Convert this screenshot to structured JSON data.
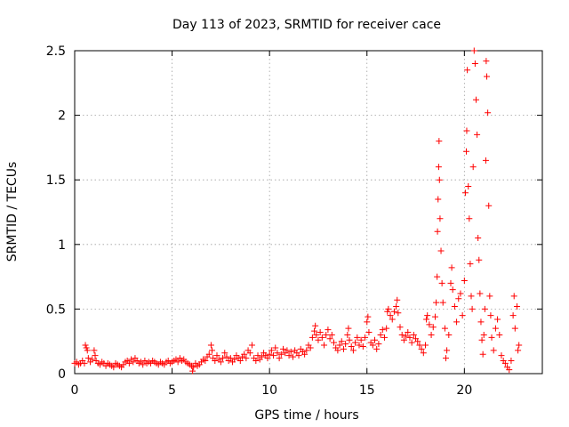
{
  "chart_data": {
    "type": "scatter",
    "title": "Day 113 of 2023, SRMTID for receiver cace",
    "xlabel": "GPS time / hours",
    "ylabel": "SRMTID / TECUs",
    "xlim": [
      0,
      24
    ],
    "ylim": [
      0,
      2.5
    ],
    "xticks": [
      0,
      5,
      10,
      15,
      20
    ],
    "yticks": [
      0,
      0.5,
      1,
      1.5,
      2,
      2.5
    ],
    "xtick_labels": [
      "0",
      "5",
      "10",
      "15",
      "20"
    ],
    "ytick_labels": [
      "0",
      "0.5",
      "1",
      "1.5",
      "2",
      "2.5"
    ],
    "grid": true,
    "marker": "+",
    "color": "#ff0000",
    "series": [
      {
        "name": "SRMTID",
        "points": [
          [
            0.0,
            0.08
          ],
          [
            0.1,
            0.09
          ],
          [
            0.2,
            0.07
          ],
          [
            0.3,
            0.08
          ],
          [
            0.4,
            0.1
          ],
          [
            0.5,
            0.08
          ],
          [
            0.55,
            0.22
          ],
          [
            0.6,
            0.2
          ],
          [
            0.65,
            0.18
          ],
          [
            0.7,
            0.12
          ],
          [
            0.8,
            0.09
          ],
          [
            0.9,
            0.11
          ],
          [
            1.0,
            0.18
          ],
          [
            1.05,
            0.14
          ],
          [
            1.1,
            0.1
          ],
          [
            1.2,
            0.08
          ],
          [
            1.3,
            0.07
          ],
          [
            1.4,
            0.09
          ],
          [
            1.5,
            0.08
          ],
          [
            1.6,
            0.06
          ],
          [
            1.7,
            0.08
          ],
          [
            1.8,
            0.07
          ],
          [
            1.9,
            0.06
          ],
          [
            2.0,
            0.05
          ],
          [
            2.1,
            0.08
          ],
          [
            2.2,
            0.07
          ],
          [
            2.3,
            0.06
          ],
          [
            2.4,
            0.05
          ],
          [
            2.5,
            0.07
          ],
          [
            2.6,
            0.09
          ],
          [
            2.7,
            0.1
          ],
          [
            2.8,
            0.08
          ],
          [
            2.9,
            0.11
          ],
          [
            3.0,
            0.09
          ],
          [
            3.1,
            0.12
          ],
          [
            3.2,
            0.1
          ],
          [
            3.3,
            0.08
          ],
          [
            3.4,
            0.09
          ],
          [
            3.5,
            0.07
          ],
          [
            3.6,
            0.1
          ],
          [
            3.7,
            0.08
          ],
          [
            3.8,
            0.09
          ],
          [
            3.9,
            0.08
          ],
          [
            4.0,
            0.1
          ],
          [
            4.1,
            0.09
          ],
          [
            4.2,
            0.08
          ],
          [
            4.3,
            0.07
          ],
          [
            4.4,
            0.09
          ],
          [
            4.5,
            0.08
          ],
          [
            4.6,
            0.07
          ],
          [
            4.7,
            0.09
          ],
          [
            4.8,
            0.1
          ],
          [
            4.9,
            0.08
          ],
          [
            5.0,
            0.09
          ],
          [
            5.1,
            0.1
          ],
          [
            5.2,
            0.11
          ],
          [
            5.3,
            0.09
          ],
          [
            5.4,
            0.12
          ],
          [
            5.5,
            0.1
          ],
          [
            5.6,
            0.11
          ],
          [
            5.7,
            0.09
          ],
          [
            5.8,
            0.08
          ],
          [
            5.9,
            0.07
          ],
          [
            6.0,
            0.06
          ],
          [
            6.05,
            0.02
          ],
          [
            6.1,
            0.05
          ],
          [
            6.2,
            0.08
          ],
          [
            6.3,
            0.06
          ],
          [
            6.4,
            0.07
          ],
          [
            6.5,
            0.09
          ],
          [
            6.6,
            0.11
          ],
          [
            6.7,
            0.1
          ],
          [
            6.8,
            0.13
          ],
          [
            6.9,
            0.15
          ],
          [
            7.0,
            0.22
          ],
          [
            7.05,
            0.18
          ],
          [
            7.1,
            0.12
          ],
          [
            7.2,
            0.1
          ],
          [
            7.3,
            0.14
          ],
          [
            7.4,
            0.11
          ],
          [
            7.5,
            0.09
          ],
          [
            7.6,
            0.12
          ],
          [
            7.7,
            0.16
          ],
          [
            7.8,
            0.13
          ],
          [
            7.9,
            0.1
          ],
          [
            8.0,
            0.12
          ],
          [
            8.1,
            0.09
          ],
          [
            8.2,
            0.11
          ],
          [
            8.3,
            0.14
          ],
          [
            8.4,
            0.12
          ],
          [
            8.5,
            0.1
          ],
          [
            8.6,
            0.13
          ],
          [
            8.7,
            0.15
          ],
          [
            8.8,
            0.12
          ],
          [
            8.9,
            0.18
          ],
          [
            9.0,
            0.16
          ],
          [
            9.1,
            0.22
          ],
          [
            9.2,
            0.12
          ],
          [
            9.3,
            0.1
          ],
          [
            9.4,
            0.14
          ],
          [
            9.5,
            0.11
          ],
          [
            9.6,
            0.13
          ],
          [
            9.7,
            0.16
          ],
          [
            9.8,
            0.14
          ],
          [
            9.9,
            0.12
          ],
          [
            10.0,
            0.15
          ],
          [
            10.1,
            0.18
          ],
          [
            10.2,
            0.14
          ],
          [
            10.3,
            0.2
          ],
          [
            10.4,
            0.16
          ],
          [
            10.5,
            0.12
          ],
          [
            10.6,
            0.15
          ],
          [
            10.7,
            0.19
          ],
          [
            10.8,
            0.16
          ],
          [
            10.9,
            0.18
          ],
          [
            11.0,
            0.14
          ],
          [
            11.1,
            0.17
          ],
          [
            11.2,
            0.13
          ],
          [
            11.3,
            0.18
          ],
          [
            11.4,
            0.16
          ],
          [
            11.5,
            0.14
          ],
          [
            11.6,
            0.19
          ],
          [
            11.7,
            0.17
          ],
          [
            11.8,
            0.15
          ],
          [
            11.9,
            0.18
          ],
          [
            12.0,
            0.22
          ],
          [
            12.1,
            0.2
          ],
          [
            12.2,
            0.28
          ],
          [
            12.3,
            0.33
          ],
          [
            12.35,
            0.37
          ],
          [
            12.4,
            0.3
          ],
          [
            12.5,
            0.26
          ],
          [
            12.6,
            0.32
          ],
          [
            12.7,
            0.28
          ],
          [
            12.8,
            0.22
          ],
          [
            12.9,
            0.3
          ],
          [
            13.0,
            0.34
          ],
          [
            13.1,
            0.27
          ],
          [
            13.2,
            0.3
          ],
          [
            13.3,
            0.24
          ],
          [
            13.4,
            0.2
          ],
          [
            13.5,
            0.18
          ],
          [
            13.6,
            0.22
          ],
          [
            13.7,
            0.25
          ],
          [
            13.8,
            0.19
          ],
          [
            13.9,
            0.23
          ],
          [
            14.0,
            0.3
          ],
          [
            14.05,
            0.35
          ],
          [
            14.1,
            0.26
          ],
          [
            14.2,
            0.21
          ],
          [
            14.3,
            0.18
          ],
          [
            14.4,
            0.24
          ],
          [
            14.5,
            0.28
          ],
          [
            14.6,
            0.22
          ],
          [
            14.7,
            0.26
          ],
          [
            14.8,
            0.21
          ],
          [
            14.9,
            0.28
          ],
          [
            15.0,
            0.4
          ],
          [
            15.05,
            0.44
          ],
          [
            15.1,
            0.32
          ],
          [
            15.2,
            0.24
          ],
          [
            15.3,
            0.22
          ],
          [
            15.4,
            0.26
          ],
          [
            15.5,
            0.19
          ],
          [
            15.6,
            0.23
          ],
          [
            15.7,
            0.3
          ],
          [
            15.8,
            0.34
          ],
          [
            15.9,
            0.28
          ],
          [
            16.0,
            0.35
          ],
          [
            16.05,
            0.48
          ],
          [
            16.1,
            0.5
          ],
          [
            16.2,
            0.45
          ],
          [
            16.3,
            0.42
          ],
          [
            16.4,
            0.48
          ],
          [
            16.5,
            0.52
          ],
          [
            16.55,
            0.57
          ],
          [
            16.6,
            0.47
          ],
          [
            16.7,
            0.36
          ],
          [
            16.8,
            0.3
          ],
          [
            16.9,
            0.26
          ],
          [
            17.0,
            0.29
          ],
          [
            17.1,
            0.32
          ],
          [
            17.2,
            0.28
          ],
          [
            17.3,
            0.24
          ],
          [
            17.4,
            0.3
          ],
          [
            17.5,
            0.27
          ],
          [
            17.6,
            0.25
          ],
          [
            17.7,
            0.22
          ],
          [
            17.8,
            0.19
          ],
          [
            17.9,
            0.16
          ],
          [
            18.0,
            0.22
          ],
          [
            18.05,
            0.42
          ],
          [
            18.1,
            0.45
          ],
          [
            18.2,
            0.38
          ],
          [
            18.3,
            0.3
          ],
          [
            18.4,
            0.36
          ],
          [
            18.5,
            0.44
          ],
          [
            18.55,
            0.55
          ],
          [
            18.6,
            0.75
          ],
          [
            18.62,
            1.1
          ],
          [
            18.65,
            1.35
          ],
          [
            18.68,
            1.6
          ],
          [
            18.7,
            1.8
          ],
          [
            18.72,
            1.5
          ],
          [
            18.75,
            1.2
          ],
          [
            18.8,
            0.95
          ],
          [
            18.85,
            0.7
          ],
          [
            18.9,
            0.55
          ],
          [
            19.0,
            0.35
          ],
          [
            19.05,
            0.12
          ],
          [
            19.1,
            0.18
          ],
          [
            19.2,
            0.3
          ],
          [
            19.3,
            0.7
          ],
          [
            19.35,
            0.82
          ],
          [
            19.4,
            0.65
          ],
          [
            19.5,
            0.52
          ],
          [
            19.6,
            0.4
          ],
          [
            19.7,
            0.58
          ],
          [
            19.8,
            0.62
          ],
          [
            19.9,
            0.45
          ],
          [
            20.0,
            0.72
          ],
          [
            20.05,
            1.4
          ],
          [
            20.1,
            1.72
          ],
          [
            20.12,
            1.88
          ],
          [
            20.15,
            2.35
          ],
          [
            20.2,
            1.45
          ],
          [
            20.25,
            1.2
          ],
          [
            20.3,
            0.85
          ],
          [
            20.35,
            0.6
          ],
          [
            20.4,
            0.5
          ],
          [
            20.45,
            1.6
          ],
          [
            20.5,
            2.5
          ],
          [
            20.55,
            2.4
          ],
          [
            20.6,
            2.12
          ],
          [
            20.65,
            1.85
          ],
          [
            20.7,
            1.05
          ],
          [
            20.75,
            0.88
          ],
          [
            20.8,
            0.62
          ],
          [
            20.85,
            0.4
          ],
          [
            20.9,
            0.26
          ],
          [
            20.95,
            0.15
          ],
          [
            21.0,
            0.3
          ],
          [
            21.05,
            0.5
          ],
          [
            21.1,
            1.65
          ],
          [
            21.12,
            2.42
          ],
          [
            21.15,
            2.3
          ],
          [
            21.2,
            2.02
          ],
          [
            21.25,
            1.3
          ],
          [
            21.3,
            0.6
          ],
          [
            21.35,
            0.45
          ],
          [
            21.4,
            0.28
          ],
          [
            21.5,
            0.18
          ],
          [
            21.6,
            0.35
          ],
          [
            21.7,
            0.42
          ],
          [
            21.8,
            0.3
          ],
          [
            21.9,
            0.14
          ],
          [
            22.0,
            0.1
          ],
          [
            22.1,
            0.08
          ],
          [
            22.2,
            0.05
          ],
          [
            22.3,
            0.03
          ],
          [
            22.4,
            0.1
          ],
          [
            22.5,
            0.45
          ],
          [
            22.55,
            0.6
          ],
          [
            22.6,
            0.35
          ],
          [
            22.7,
            0.52
          ],
          [
            22.75,
            0.18
          ],
          [
            22.8,
            0.22
          ]
        ]
      }
    ]
  }
}
